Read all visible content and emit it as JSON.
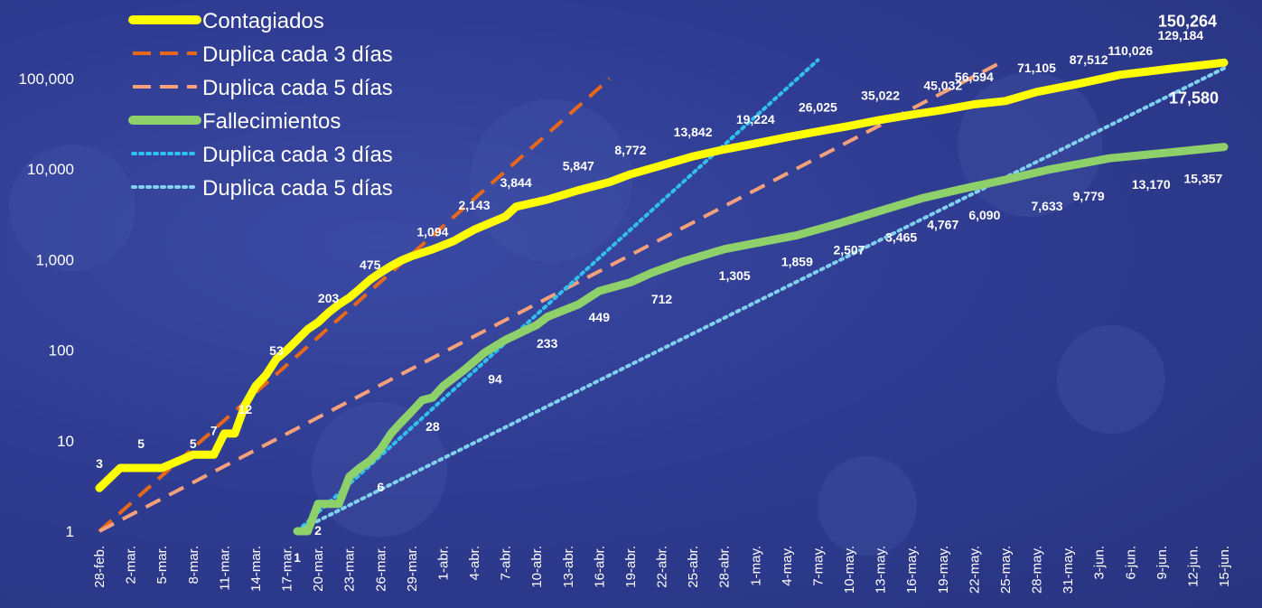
{
  "chart_data": {
    "type": "line",
    "y_scale": "log",
    "ylim": [
      1,
      150264
    ],
    "y_tick_labels": [
      "1",
      "10",
      "100",
      "1,000",
      "10,000",
      "100,000"
    ],
    "y_tick_values": [
      1,
      10,
      100,
      1000,
      10000,
      100000
    ],
    "x_start_date": "2020-02-28",
    "x_end_date": "2020-06-15",
    "x_tick_labels": [
      "28-feb.",
      "2-mar.",
      "5-mar.",
      "8-mar.",
      "11-mar.",
      "14-mar.",
      "17-mar.",
      "20-mar.",
      "23-mar.",
      "26-mar.",
      "29-mar.",
      "1-abr.",
      "4-abr.",
      "7-abr.",
      "10-abr.",
      "13-abr.",
      "16-abr.",
      "19-abr.",
      "22-abr.",
      "25-abr.",
      "28-abr.",
      "1-may.",
      "4-may.",
      "7-may.",
      "10-may.",
      "13-may.",
      "16-may.",
      "19-may.",
      "22-may.",
      "25-may.",
      "28-may.",
      "31-may.",
      "3-jun.",
      "6-jun.",
      "9-jun.",
      "12-jun.",
      "15-jun."
    ],
    "grid": false,
    "legend_position": "top-left",
    "series": [
      {
        "name": "Contagiados",
        "color": "#ffff00",
        "style": "solid",
        "points": [
          [
            "2020-02-28",
            3
          ],
          [
            "2020-03-01",
            5
          ],
          [
            "2020-03-05",
            5
          ],
          [
            "2020-03-08",
            7
          ],
          [
            "2020-03-10",
            7
          ],
          [
            "2020-03-11",
            12
          ],
          [
            "2020-03-12",
            12
          ],
          [
            "2020-03-13",
            25
          ],
          [
            "2020-03-14",
            40
          ],
          [
            "2020-03-15",
            53
          ],
          [
            "2020-03-16",
            80
          ],
          [
            "2020-03-17",
            100
          ],
          [
            "2020-03-18",
            130
          ],
          [
            "2020-03-19",
            170
          ],
          [
            "2020-03-20",
            203
          ],
          [
            "2020-03-21",
            260
          ],
          [
            "2020-03-22",
            320
          ],
          [
            "2020-03-23",
            380
          ],
          [
            "2020-03-24",
            475
          ],
          [
            "2020-03-25",
            600
          ],
          [
            "2020-03-26",
            720
          ],
          [
            "2020-03-27",
            850
          ],
          [
            "2020-03-28",
            980
          ],
          [
            "2020-03-29",
            1094
          ],
          [
            "2020-03-31",
            1300
          ],
          [
            "2020-04-02",
            1600
          ],
          [
            "2020-04-04",
            2143
          ],
          [
            "2020-04-07",
            3000
          ],
          [
            "2020-04-08",
            3844
          ],
          [
            "2020-04-11",
            4600
          ],
          [
            "2020-04-14",
            5847
          ],
          [
            "2020-04-17",
            7200
          ],
          [
            "2020-04-19",
            8772
          ],
          [
            "2020-04-22",
            11000
          ],
          [
            "2020-04-25",
            13842
          ],
          [
            "2020-04-28",
            16500
          ],
          [
            "2020-05-01",
            19224
          ],
          [
            "2020-05-04",
            22500
          ],
          [
            "2020-05-07",
            26025
          ],
          [
            "2020-05-10",
            30000
          ],
          [
            "2020-05-13",
            35022
          ],
          [
            "2020-05-16",
            40000
          ],
          [
            "2020-05-19",
            45032
          ],
          [
            "2020-05-22",
            52000
          ],
          [
            "2020-05-25",
            56594
          ],
          [
            "2020-05-28",
            71105
          ],
          [
            "2020-06-01",
            87512
          ],
          [
            "2020-06-05",
            110026
          ],
          [
            "2020-06-10",
            129184
          ],
          [
            "2020-06-15",
            150264
          ]
        ]
      },
      {
        "name": "Duplica cada 3 días",
        "color": "#e8681a",
        "style": "dashed",
        "points": [
          [
            "2020-02-28",
            1
          ],
          [
            "2020-04-17",
            100000
          ]
        ]
      },
      {
        "name": "Duplica cada 5 días",
        "color": "#f4a07a",
        "style": "dashed",
        "points": [
          [
            "2020-02-28",
            1
          ],
          [
            "2020-05-25",
            160000
          ]
        ]
      },
      {
        "name": "Fallecimientos",
        "color": "#8ed06a",
        "style": "solid",
        "points": [
          [
            "2020-03-18",
            1
          ],
          [
            "2020-03-19",
            1
          ],
          [
            "2020-03-20",
            2
          ],
          [
            "2020-03-22",
            2
          ],
          [
            "2020-03-23",
            4
          ],
          [
            "2020-03-24",
            5
          ],
          [
            "2020-03-25",
            6
          ],
          [
            "2020-03-26",
            8
          ],
          [
            "2020-03-27",
            12
          ],
          [
            "2020-03-28",
            16
          ],
          [
            "2020-03-29",
            21
          ],
          [
            "2020-03-30",
            28
          ],
          [
            "2020-03-31",
            30
          ],
          [
            "2020-04-01",
            40
          ],
          [
            "2020-04-03",
            60
          ],
          [
            "2020-04-05",
            94
          ],
          [
            "2020-04-07",
            130
          ],
          [
            "2020-04-10",
            190
          ],
          [
            "2020-04-11",
            233
          ],
          [
            "2020-04-14",
            320
          ],
          [
            "2020-04-16",
            449
          ],
          [
            "2020-04-19",
            560
          ],
          [
            "2020-04-21",
            712
          ],
          [
            "2020-04-24",
            950
          ],
          [
            "2020-04-28",
            1305
          ],
          [
            "2020-05-02",
            1600
          ],
          [
            "2020-05-05",
            1859
          ],
          [
            "2020-05-09",
            2507
          ],
          [
            "2020-05-13",
            3465
          ],
          [
            "2020-05-17",
            4767
          ],
          [
            "2020-05-21",
            6090
          ],
          [
            "2020-05-25",
            7633
          ],
          [
            "2020-05-29",
            9779
          ],
          [
            "2020-06-04",
            13170
          ],
          [
            "2020-06-10",
            15357
          ],
          [
            "2020-06-15",
            17580
          ]
        ]
      },
      {
        "name": "Duplica cada 3 días",
        "color": "#30c0f0",
        "style": "dotted",
        "points": [
          [
            "2020-03-18",
            1
          ],
          [
            "2020-05-07",
            160000
          ]
        ]
      },
      {
        "name": "Duplica cada 5 días",
        "color": "#80d0f0",
        "style": "dotted",
        "points": [
          [
            "2020-03-18",
            1
          ],
          [
            "2020-06-15",
            130000
          ]
        ]
      }
    ],
    "data_labels": [
      {
        "series": "Contagiados",
        "date": "2020-02-28",
        "value": 3,
        "text": "3"
      },
      {
        "series": "Contagiados",
        "date": "2020-03-03",
        "value": 5,
        "text": "5"
      },
      {
        "series": "Contagiados",
        "date": "2020-03-08",
        "value": 5,
        "text": "5"
      },
      {
        "series": "Contagiados",
        "date": "2020-03-10",
        "value": 7,
        "text": "7"
      },
      {
        "series": "Contagiados",
        "date": "2020-03-13",
        "value": 12,
        "text": "12"
      },
      {
        "series": "Contagiados",
        "date": "2020-03-16",
        "value": 53,
        "text": "53"
      },
      {
        "series": "Contagiados",
        "date": "2020-03-21",
        "value": 203,
        "text": "203"
      },
      {
        "series": "Contagiados",
        "date": "2020-03-25",
        "value": 475,
        "text": "475"
      },
      {
        "series": "Contagiados",
        "date": "2020-03-31",
        "value": 1094,
        "text": "1,094"
      },
      {
        "series": "Contagiados",
        "date": "2020-04-04",
        "value": 2143,
        "text": "2,143"
      },
      {
        "series": "Contagiados",
        "date": "2020-04-08",
        "value": 3844,
        "text": "3,844"
      },
      {
        "series": "Contagiados",
        "date": "2020-04-14",
        "value": 5847,
        "text": "5,847"
      },
      {
        "series": "Contagiados",
        "date": "2020-04-19",
        "value": 8772,
        "text": "8,772"
      },
      {
        "series": "Contagiados",
        "date": "2020-04-25",
        "value": 13842,
        "text": "13,842"
      },
      {
        "series": "Contagiados",
        "date": "2020-05-01",
        "value": 19224,
        "text": "19,224"
      },
      {
        "series": "Contagiados",
        "date": "2020-05-07",
        "value": 26025,
        "text": "26,025"
      },
      {
        "series": "Contagiados",
        "date": "2020-05-13",
        "value": 35022,
        "text": "35,022"
      },
      {
        "series": "Contagiados",
        "date": "2020-05-19",
        "value": 45032,
        "text": "45,032"
      },
      {
        "series": "Contagiados",
        "date": "2020-05-22",
        "value": 56594,
        "text": "56,594"
      },
      {
        "series": "Contagiados",
        "date": "2020-05-28",
        "value": 71105,
        "text": "71,105"
      },
      {
        "series": "Contagiados",
        "date": "2020-06-02",
        "value": 87512,
        "text": "87,512"
      },
      {
        "series": "Contagiados",
        "date": "2020-06-06",
        "value": 110026,
        "text": "110,026"
      },
      {
        "series": "Contagiados",
        "date": "2020-06-11",
        "value": 129184,
        "text": "129,184"
      },
      {
        "series": "Contagiados",
        "date": "2020-06-15",
        "value": 150264,
        "text": "150,264"
      },
      {
        "series": "Fallecimientos",
        "date": "2020-03-18",
        "value": 1,
        "text": "1"
      },
      {
        "series": "Fallecimientos",
        "date": "2020-03-20",
        "value": 2,
        "text": "2"
      },
      {
        "series": "Fallecimientos",
        "date": "2020-03-26",
        "value": 6,
        "text": "6"
      },
      {
        "series": "Fallecimientos",
        "date": "2020-03-31",
        "value": 28,
        "text": "28"
      },
      {
        "series": "Fallecimientos",
        "date": "2020-04-06",
        "value": 94,
        "text": "94"
      },
      {
        "series": "Fallecimientos",
        "date": "2020-04-11",
        "value": 233,
        "text": "233"
      },
      {
        "series": "Fallecimientos",
        "date": "2020-04-16",
        "value": 449,
        "text": "449"
      },
      {
        "series": "Fallecimientos",
        "date": "2020-04-22",
        "value": 712,
        "text": "712"
      },
      {
        "series": "Fallecimientos",
        "date": "2020-04-29",
        "value": 1305,
        "text": "1,305"
      },
      {
        "series": "Fallecimientos",
        "date": "2020-05-05",
        "value": 1859,
        "text": "1,859"
      },
      {
        "series": "Fallecimientos",
        "date": "2020-05-10",
        "value": 2507,
        "text": "2,507"
      },
      {
        "series": "Fallecimientos",
        "date": "2020-05-15",
        "value": 3465,
        "text": "3,465"
      },
      {
        "series": "Fallecimientos",
        "date": "2020-05-19",
        "value": 4767,
        "text": "4,767"
      },
      {
        "series": "Fallecimientos",
        "date": "2020-05-23",
        "value": 6090,
        "text": "6,090"
      },
      {
        "series": "Fallecimientos",
        "date": "2020-05-29",
        "value": 7633,
        "text": "7,633"
      },
      {
        "series": "Fallecimientos",
        "date": "2020-06-02",
        "value": 9779,
        "text": "9,779"
      },
      {
        "series": "Fallecimientos",
        "date": "2020-06-08",
        "value": 13170,
        "text": "13,170"
      },
      {
        "series": "Fallecimientos",
        "date": "2020-06-13",
        "value": 15357,
        "text": "15,357"
      },
      {
        "series": "Fallecimientos",
        "date": "2020-06-15",
        "value": 17580,
        "text": "17,580"
      }
    ]
  }
}
